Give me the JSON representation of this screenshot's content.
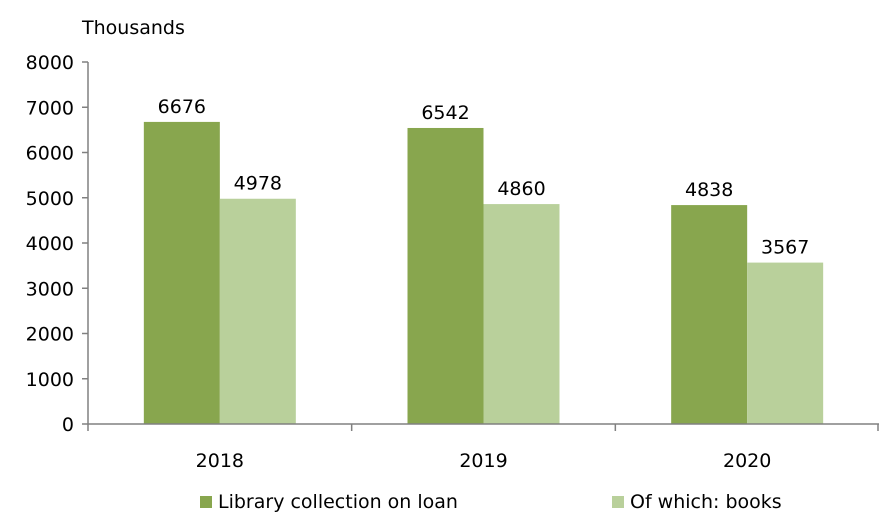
{
  "chart_data": {
    "type": "bar",
    "unit_label": "Thousands",
    "categories": [
      "2018",
      "2019",
      "2020"
    ],
    "series": [
      {
        "name": "Library collection on loan",
        "color": "#88a64e",
        "values": [
          6676,
          6542,
          4838
        ]
      },
      {
        "name": "Of which: books",
        "color": "#b9d09b",
        "values": [
          4978,
          4860,
          3567
        ]
      }
    ],
    "ylim": [
      0,
      8000
    ],
    "yticks": [
      0,
      1000,
      2000,
      3000,
      4000,
      5000,
      6000,
      7000,
      8000
    ],
    "grid": false,
    "legend_position": "bottom"
  }
}
